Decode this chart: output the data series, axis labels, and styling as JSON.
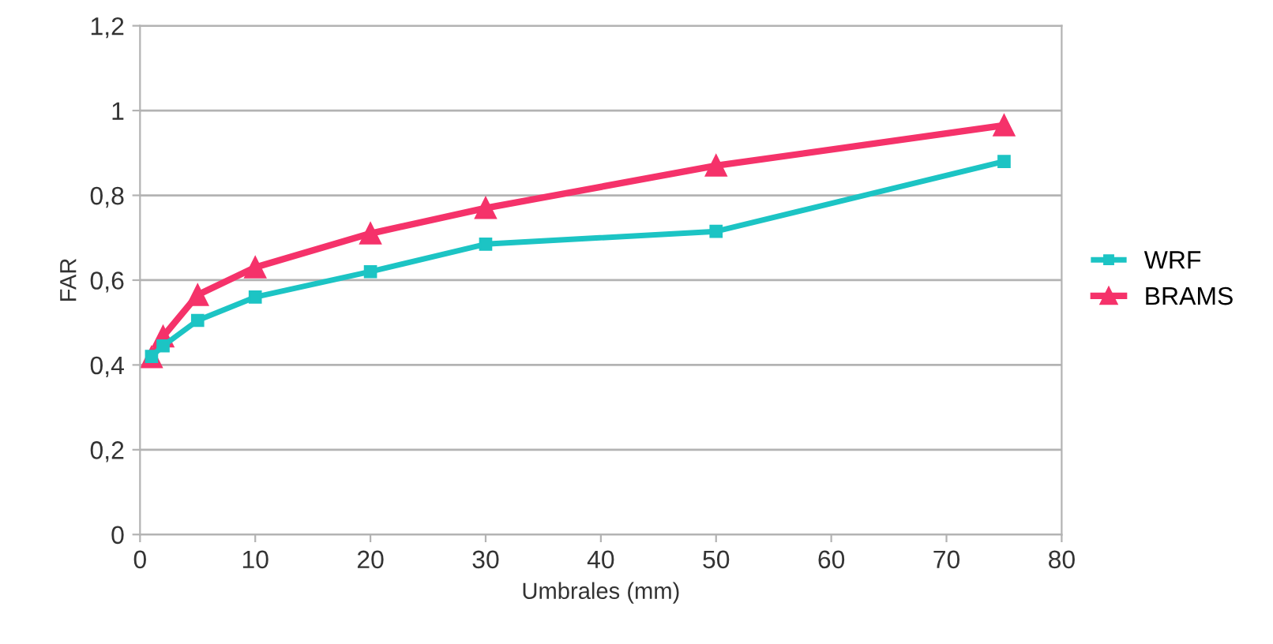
{
  "chart_data": {
    "type": "line",
    "xlabel": "Umbrales (mm)",
    "ylabel": "FAR",
    "x": [
      1,
      2,
      5,
      10,
      20,
      30,
      50,
      75
    ],
    "series": [
      {
        "name": "WRF",
        "color": "#1cc4c4",
        "marker": "square",
        "values": [
          0.42,
          0.445,
          0.505,
          0.56,
          0.62,
          0.685,
          0.715,
          0.88
        ]
      },
      {
        "name": "BRAMS",
        "color": "#f5326a",
        "marker": "triangle",
        "values": [
          0.418,
          0.467,
          0.565,
          0.63,
          0.71,
          0.77,
          0.87,
          0.965
        ]
      }
    ],
    "xlim": [
      0,
      80
    ],
    "xticks": [
      0,
      10,
      20,
      30,
      40,
      50,
      60,
      70,
      80
    ],
    "ylim": [
      0,
      1.2
    ],
    "yticks": [
      0,
      {
        "value": 0.2,
        "label": "0,2"
      },
      {
        "value": 0.4,
        "label": "0,4"
      },
      {
        "value": 0.6,
        "label": "0,6"
      },
      {
        "value": 0.8,
        "label": "0,8"
      },
      1,
      {
        "value": 1.2,
        "label": "1,2"
      }
    ],
    "grid": "y",
    "legend": "right",
    "line_style": "solid"
  }
}
